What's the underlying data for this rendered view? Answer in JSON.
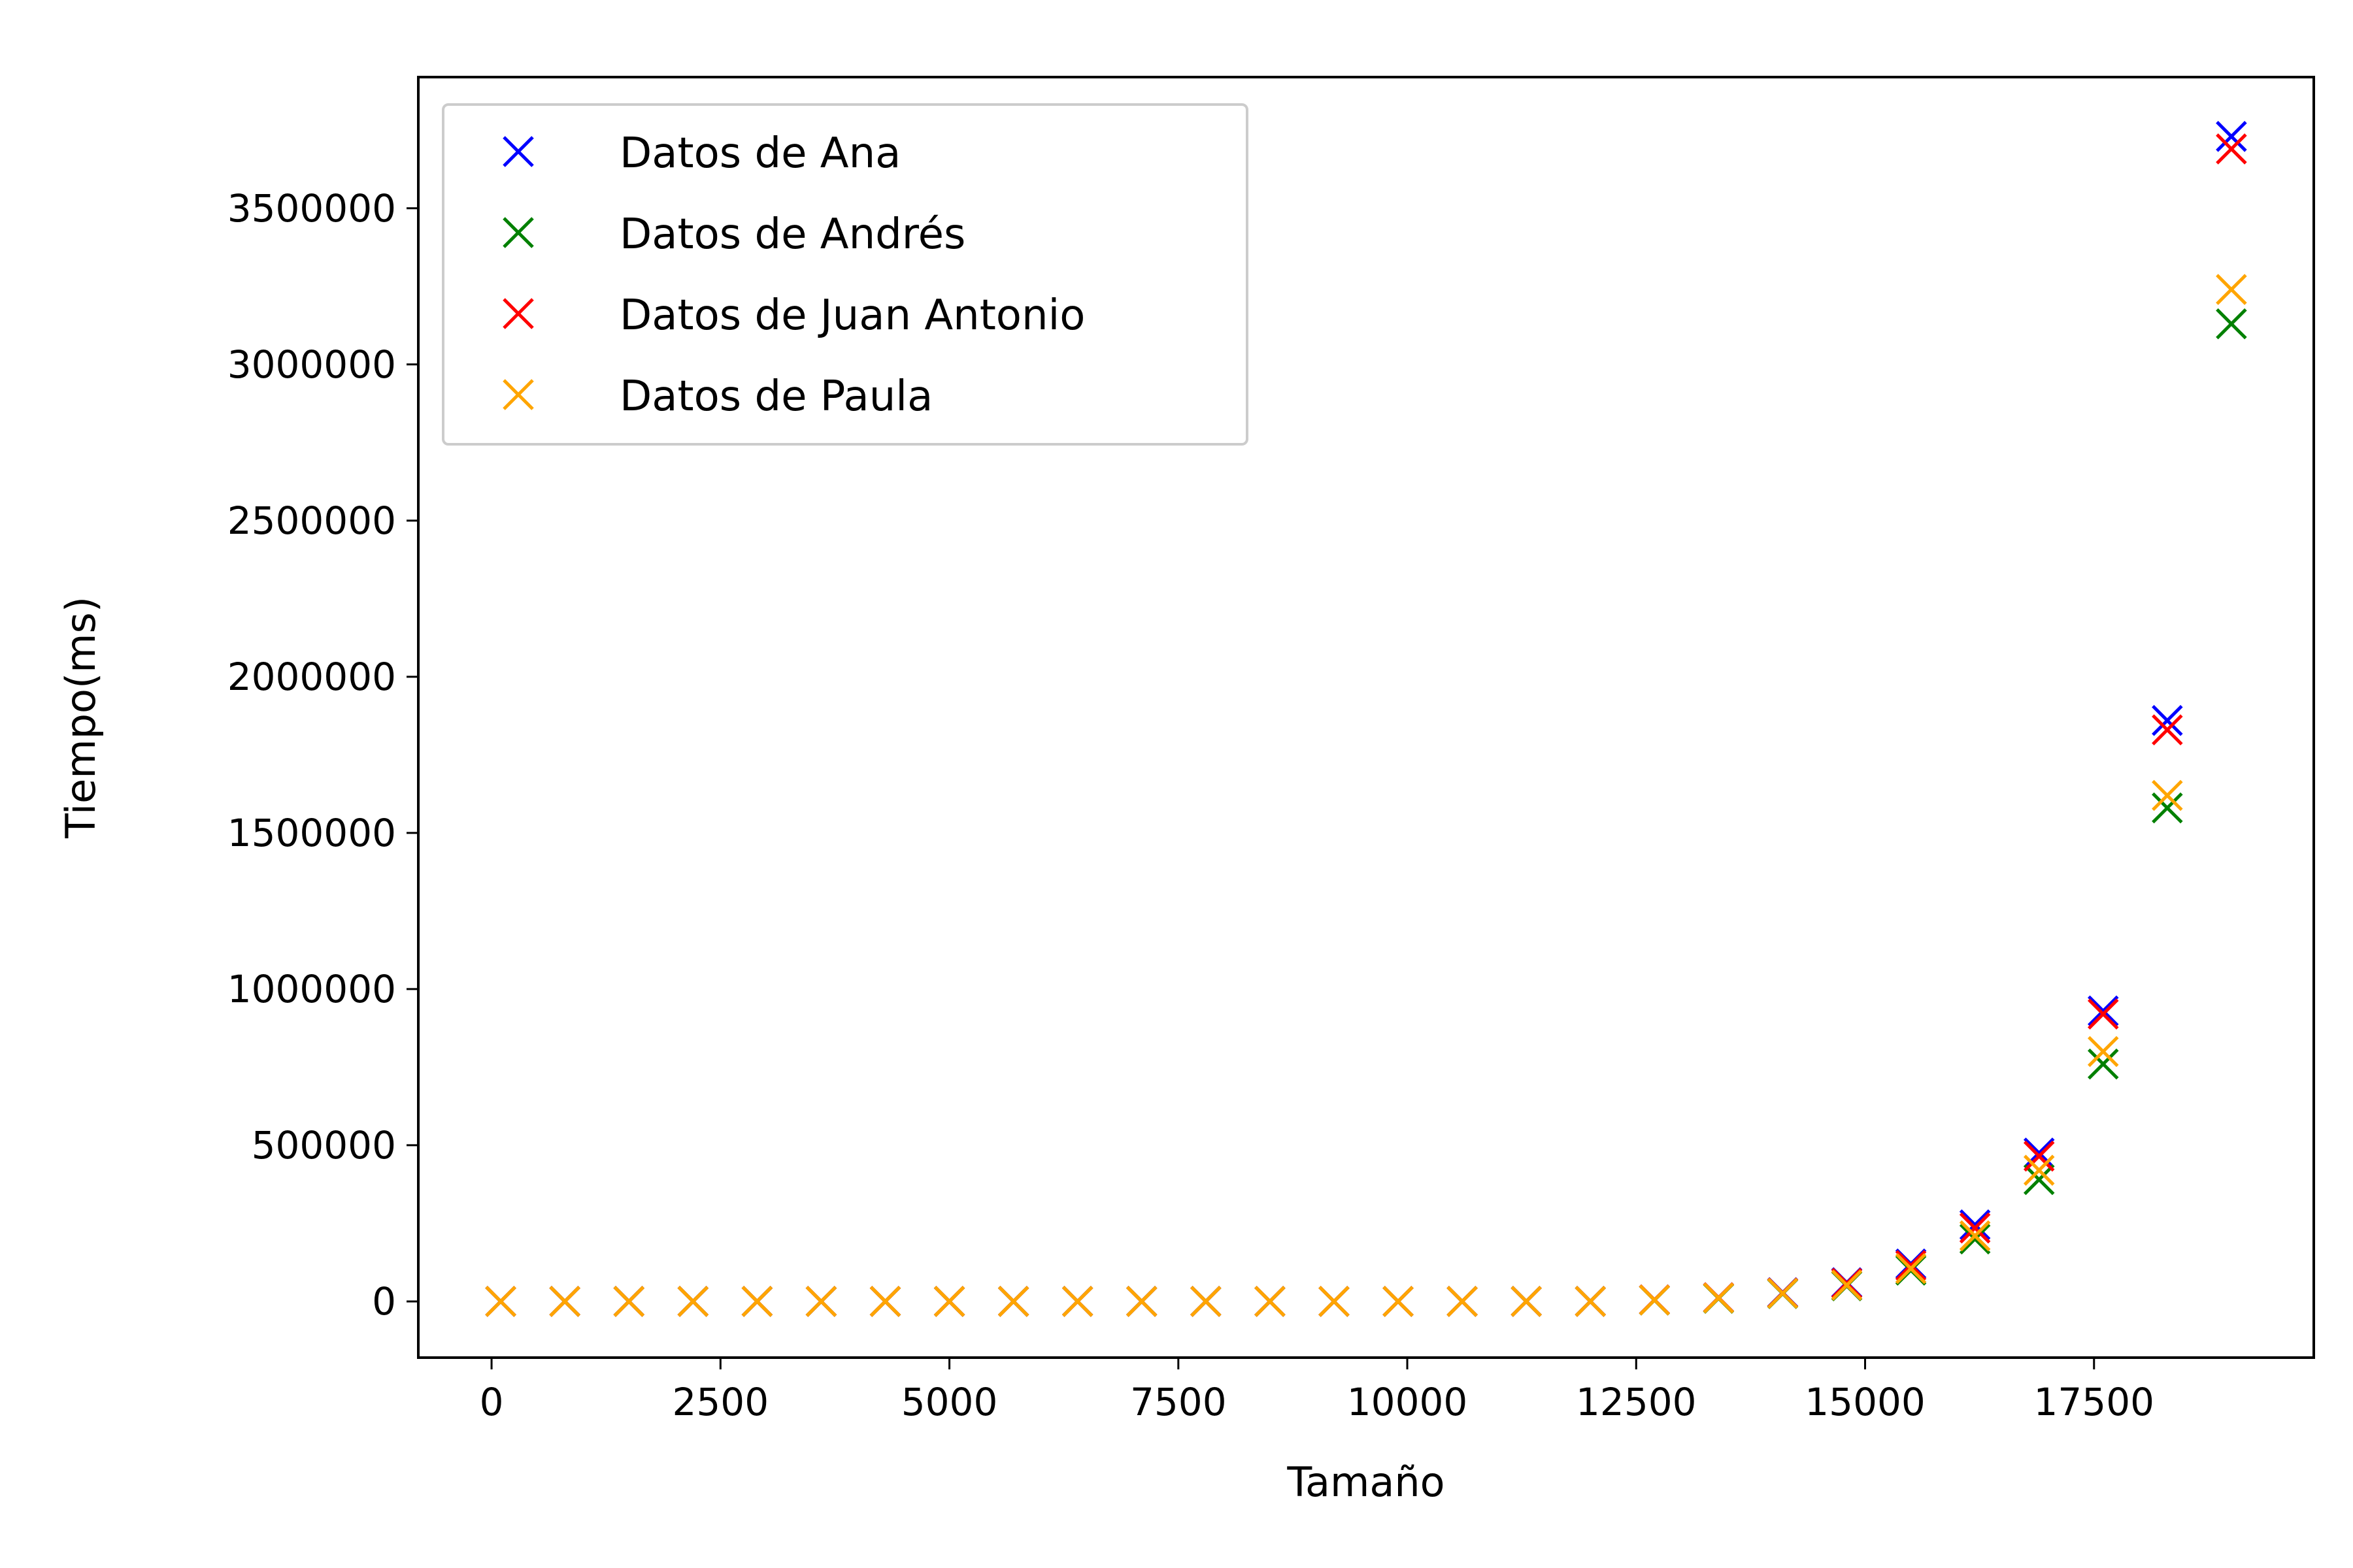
{
  "chart_data": {
    "type": "scatter",
    "title": "",
    "xlabel": "Tamaño",
    "ylabel": "Tiempo(ms)",
    "xlim": [
      -800,
      19900
    ],
    "ylim": [
      -180000,
      3920000
    ],
    "xticks": [
      0,
      2500,
      5000,
      7500,
      10000,
      12500,
      15000,
      17500
    ],
    "xtick_labels": [
      "0",
      "2500",
      "5000",
      "7500",
      "10000",
      "12500",
      "15000",
      "17500"
    ],
    "yticks": [
      0,
      500000,
      1000000,
      1500000,
      2000000,
      2500000,
      3000000,
      3500000
    ],
    "ytick_labels": [
      "0",
      "500000",
      "1000000",
      "1500000",
      "2000000",
      "2500000",
      "3000000",
      "3500000"
    ],
    "grid": false,
    "legend_position": "top-left",
    "marker": "x",
    "x": [
      100,
      800,
      1500,
      2200,
      2900,
      3600,
      4300,
      5000,
      5700,
      6400,
      7100,
      7800,
      8500,
      9200,
      9900,
      10600,
      11300,
      12000,
      12700,
      13400,
      14100,
      14800,
      15500,
      16200,
      16900,
      17600,
      18300,
      19000
    ],
    "series": [
      {
        "name": "Datos de Ana",
        "color": "#0000ff",
        "values": [
          0,
          0,
          0,
          0,
          0,
          0,
          0,
          0,
          0,
          0,
          0,
          0,
          0,
          0,
          0,
          0,
          0,
          0,
          5000,
          12000,
          28000,
          60000,
          120000,
          245000,
          475000,
          930000,
          1860000,
          3730000
        ]
      },
      {
        "name": "Datos de Andrés",
        "color": "#008000",
        "values": [
          0,
          0,
          0,
          0,
          0,
          0,
          0,
          0,
          0,
          0,
          0,
          0,
          0,
          0,
          0,
          0,
          0,
          0,
          4000,
          10000,
          25000,
          50000,
          100000,
          200000,
          390000,
          760000,
          1580000,
          3130000
        ]
      },
      {
        "name": "Datos de Juan Antonio",
        "color": "#ff0000",
        "values": [
          0,
          0,
          0,
          0,
          0,
          0,
          0,
          0,
          0,
          0,
          0,
          0,
          0,
          0,
          0,
          0,
          0,
          0,
          5000,
          12000,
          27000,
          58000,
          115000,
          235000,
          465000,
          920000,
          1830000,
          3690000
        ]
      },
      {
        "name": "Datos de Paula",
        "color": "#ffa500",
        "values": [
          0,
          0,
          0,
          0,
          0,
          0,
          0,
          0,
          0,
          0,
          0,
          0,
          0,
          0,
          0,
          0,
          0,
          0,
          4500,
          11000,
          26000,
          52000,
          105000,
          210000,
          420000,
          800000,
          1620000,
          3240000
        ]
      }
    ]
  }
}
